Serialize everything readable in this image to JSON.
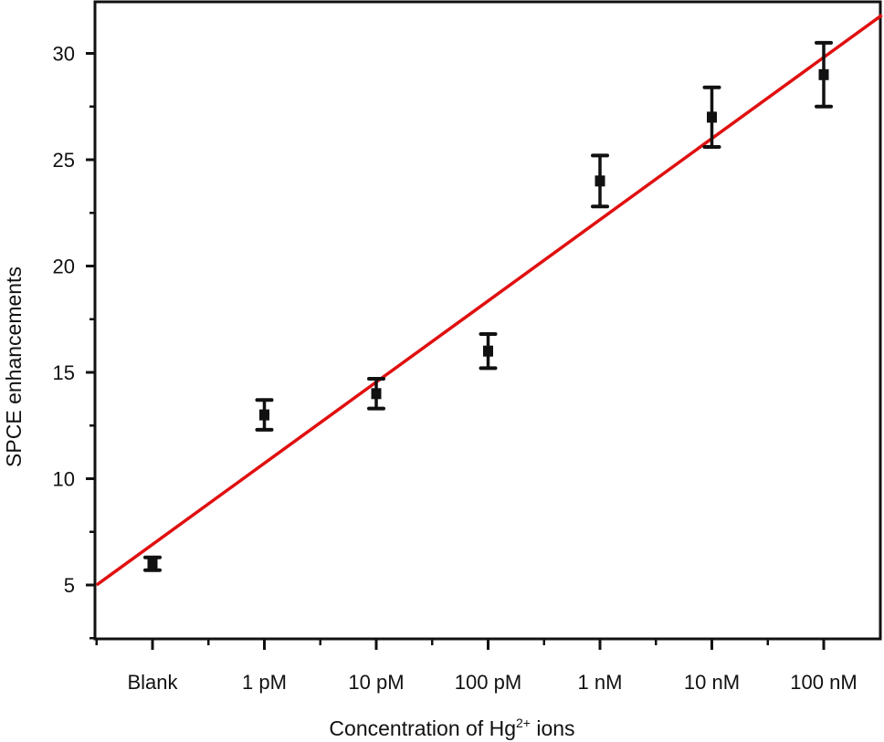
{
  "chart_data": {
    "type": "scatter",
    "title": "",
    "xlabel": "Concentration of Hg2+ ions",
    "xlabel_parts": {
      "prefix": "Concentration of Hg",
      "superscript": "2+",
      "suffix": " ions"
    },
    "ylabel": "SPCE enhancements",
    "categories": [
      "Blank",
      "1 pM",
      "10 pM",
      "100 pM",
      "1 nM",
      "10 nM",
      "100 nM"
    ],
    "series": [
      {
        "name": "SPCE enhancement",
        "values": [
          6.0,
          13.0,
          14.0,
          16.0,
          24.0,
          27.0,
          29.0
        ],
        "errors": [
          0.3,
          0.7,
          0.7,
          0.8,
          1.2,
          1.4,
          1.5
        ],
        "marker": "square",
        "color": "#111111"
      }
    ],
    "fit_line": {
      "name": "linear fit",
      "color": "#e01010",
      "start": {
        "x_index": -0.5,
        "y": 5.0
      },
      "end": {
        "x_index": 6.52,
        "y": 31.8
      }
    },
    "yticks": [
      5,
      10,
      15,
      20,
      25,
      30
    ],
    "ylim": [
      2.5,
      32.5
    ],
    "grid": false,
    "legend": null
  }
}
